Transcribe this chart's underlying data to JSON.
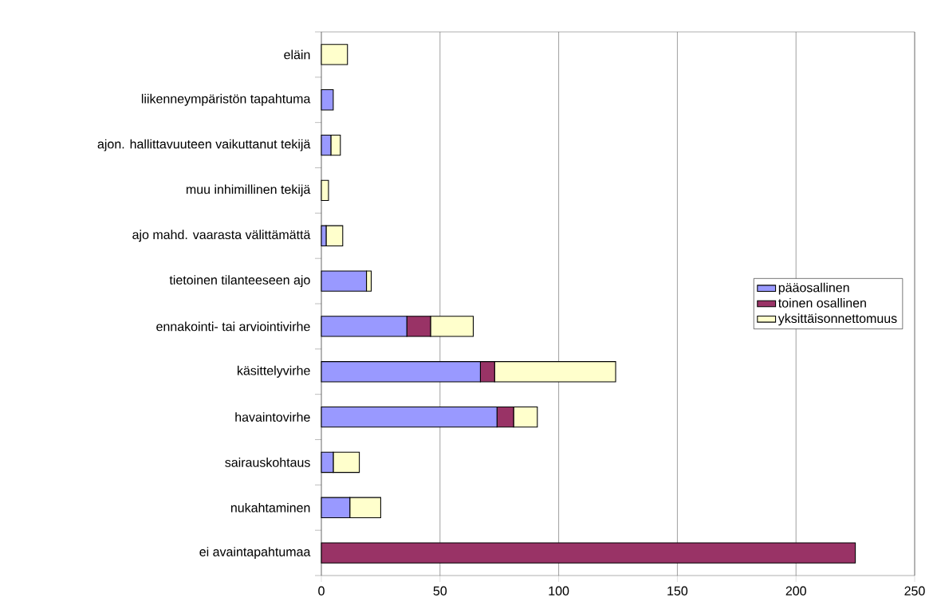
{
  "chart_data": {
    "type": "bar",
    "orientation": "horizontal",
    "stacked": true,
    "categories": [
      "eläin",
      "liikenneympäristön tapahtuma",
      "ajon. hallittavuuteen vaikuttanut tekijä",
      "muu inhimillinen tekijä",
      "ajo mahd. vaarasta välittämättä",
      "tietoinen tilanteeseen ajo",
      "ennakointi- tai arviointivirhe",
      "käsittelyvirhe",
      "havaintovirhe",
      "sairauskohtaus",
      "nukahtaminen",
      "ei avaintapahtumaa"
    ],
    "series": [
      {
        "name": "pääosallinen",
        "color": "#9999ff",
        "values": [
          0,
          5,
          4,
          0,
          2,
          19,
          36,
          67,
          74,
          5,
          12,
          0
        ]
      },
      {
        "name": "toinen osallinen",
        "color": "#993366",
        "values": [
          0,
          0,
          0,
          0,
          0,
          0,
          10,
          6,
          7,
          0,
          0,
          225
        ]
      },
      {
        "name": "yksittäisonnettomuus",
        "color": "#ffffcc",
        "values": [
          11,
          0,
          4,
          3,
          7,
          2,
          18,
          51,
          10,
          11,
          13,
          0
        ]
      }
    ],
    "xlim": [
      0,
      250
    ],
    "xticks": [
      0,
      50,
      100,
      150,
      200,
      250
    ],
    "grid": "x",
    "legend": "right"
  }
}
